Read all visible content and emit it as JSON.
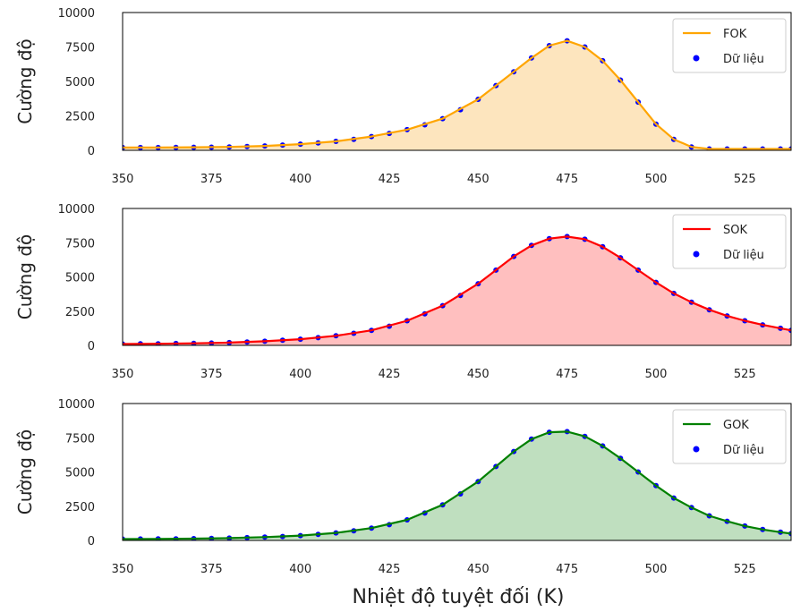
{
  "figure": {
    "xlabel": "Nhiệt độ tuyệt đối (K)"
  },
  "chart_data": [
    {
      "type": "line",
      "ylabel": "Cường độ",
      "xlim": [
        350,
        538
      ],
      "ylim": [
        0,
        10000
      ],
      "xticks": [
        "350",
        "375",
        "400",
        "425",
        "450",
        "475",
        "500",
        "525"
      ],
      "yticks": [
        "0",
        "2500",
        "5000",
        "7500",
        "10000"
      ],
      "legend_position": "top-right",
      "fill_under_fit": true,
      "series": [
        {
          "name": "FOK",
          "kind": "fit-line",
          "color": "#ffa500",
          "fill_color": "#fde5be",
          "x": [
            350,
            360,
            370,
            380,
            390,
            400,
            410,
            420,
            430,
            440,
            450,
            455,
            460,
            465,
            470,
            475,
            480,
            485,
            490,
            495,
            500,
            505,
            510,
            515,
            520,
            530,
            538
          ],
          "y": [
            200,
            200,
            220,
            250,
            320,
            450,
            650,
            1000,
            1500,
            2300,
            3700,
            4700,
            5700,
            6700,
            7600,
            7950,
            7500,
            6500,
            5100,
            3500,
            1900,
            800,
            250,
            100,
            100,
            100,
            100
          ]
        },
        {
          "name": "Dữ liệu",
          "kind": "points",
          "color": "#0000ff",
          "x": [
            350,
            355,
            360,
            365,
            370,
            375,
            380,
            385,
            390,
            395,
            400,
            405,
            410,
            415,
            420,
            425,
            430,
            435,
            440,
            445,
            450,
            455,
            460,
            465,
            470,
            475,
            480,
            485,
            490,
            495,
            500,
            505,
            510,
            515,
            520,
            525,
            530,
            535,
            538
          ],
          "y": [
            200,
            200,
            200,
            210,
            220,
            230,
            250,
            280,
            320,
            380,
            450,
            540,
            650,
            800,
            1000,
            1230,
            1500,
            1850,
            2300,
            2950,
            3700,
            4700,
            5700,
            6700,
            7600,
            7950,
            7500,
            6500,
            5100,
            3500,
            1900,
            800,
            250,
            100,
            100,
            100,
            100,
            100,
            100
          ]
        }
      ]
    },
    {
      "type": "line",
      "ylabel": "Cường độ",
      "xlim": [
        350,
        538
      ],
      "ylim": [
        0,
        10000
      ],
      "xticks": [
        "350",
        "375",
        "400",
        "425",
        "450",
        "475",
        "500",
        "525"
      ],
      "yticks": [
        "0",
        "2500",
        "5000",
        "7500",
        "10000"
      ],
      "legend_position": "top-right",
      "fill_under_fit": true,
      "series": [
        {
          "name": "SOK",
          "kind": "fit-line",
          "color": "#ff0000",
          "fill_color": "#ffbfbf",
          "x": [
            350,
            360,
            370,
            380,
            390,
            400,
            410,
            420,
            430,
            440,
            450,
            455,
            460,
            465,
            470,
            475,
            480,
            485,
            490,
            495,
            500,
            505,
            510,
            515,
            520,
            525,
            530,
            535,
            538
          ],
          "y": [
            100,
            120,
            150,
            200,
            300,
            450,
            700,
            1100,
            1800,
            2900,
            4500,
            5500,
            6500,
            7300,
            7800,
            7950,
            7750,
            7200,
            6400,
            5500,
            4600,
            3800,
            3150,
            2600,
            2150,
            1800,
            1500,
            1250,
            1100
          ]
        },
        {
          "name": "Dữ liệu",
          "kind": "points",
          "color": "#0000ff",
          "x": [
            350,
            355,
            360,
            365,
            370,
            375,
            380,
            385,
            390,
            395,
            400,
            405,
            410,
            415,
            420,
            425,
            430,
            435,
            440,
            445,
            450,
            455,
            460,
            465,
            470,
            475,
            480,
            485,
            490,
            495,
            500,
            505,
            510,
            515,
            520,
            525,
            530,
            535,
            538
          ],
          "y": [
            100,
            110,
            120,
            135,
            150,
            170,
            200,
            240,
            300,
            370,
            450,
            560,
            700,
            880,
            1100,
            1400,
            1800,
            2300,
            2900,
            3650,
            4500,
            5500,
            6500,
            7300,
            7800,
            7950,
            7750,
            7200,
            6400,
            5500,
            4600,
            3800,
            3150,
            2600,
            2150,
            1800,
            1500,
            1250,
            1100
          ]
        }
      ]
    },
    {
      "type": "line",
      "ylabel": "Cường độ",
      "xlim": [
        350,
        538
      ],
      "ylim": [
        0,
        10000
      ],
      "xticks": [
        "350",
        "375",
        "400",
        "425",
        "450",
        "475",
        "500",
        "525"
      ],
      "yticks": [
        "0",
        "2500",
        "5000",
        "7500",
        "10000"
      ],
      "legend_position": "top-right",
      "fill_under_fit": true,
      "series": [
        {
          "name": "GOK",
          "kind": "fit-line",
          "color": "#008000",
          "fill_color": "#bfdfbf",
          "x": [
            350,
            360,
            370,
            380,
            390,
            400,
            410,
            420,
            430,
            440,
            450,
            455,
            460,
            465,
            470,
            475,
            480,
            485,
            490,
            495,
            500,
            505,
            510,
            515,
            520,
            525,
            530,
            535,
            538
          ],
          "y": [
            100,
            110,
            130,
            170,
            240,
            350,
            550,
            900,
            1500,
            2600,
            4300,
            5400,
            6500,
            7400,
            7900,
            7950,
            7600,
            6900,
            6000,
            5000,
            4000,
            3100,
            2400,
            1800,
            1400,
            1050,
            800,
            600,
            500
          ]
        },
        {
          "name": "Dữ liệu",
          "kind": "points",
          "color": "#0000ff",
          "x": [
            350,
            355,
            360,
            365,
            370,
            375,
            380,
            385,
            390,
            395,
            400,
            405,
            410,
            415,
            420,
            425,
            430,
            435,
            440,
            445,
            450,
            455,
            460,
            465,
            470,
            475,
            480,
            485,
            490,
            495,
            500,
            505,
            510,
            515,
            520,
            525,
            530,
            535,
            538
          ],
          "y": [
            100,
            105,
            110,
            120,
            130,
            150,
            170,
            200,
            240,
            290,
            350,
            440,
            550,
            700,
            900,
            1150,
            1500,
            2000,
            2600,
            3400,
            4300,
            5400,
            6500,
            7400,
            7900,
            7950,
            7600,
            6900,
            6000,
            5000,
            4000,
            3100,
            2400,
            1800,
            1400,
            1050,
            800,
            600,
            500
          ]
        }
      ]
    }
  ]
}
